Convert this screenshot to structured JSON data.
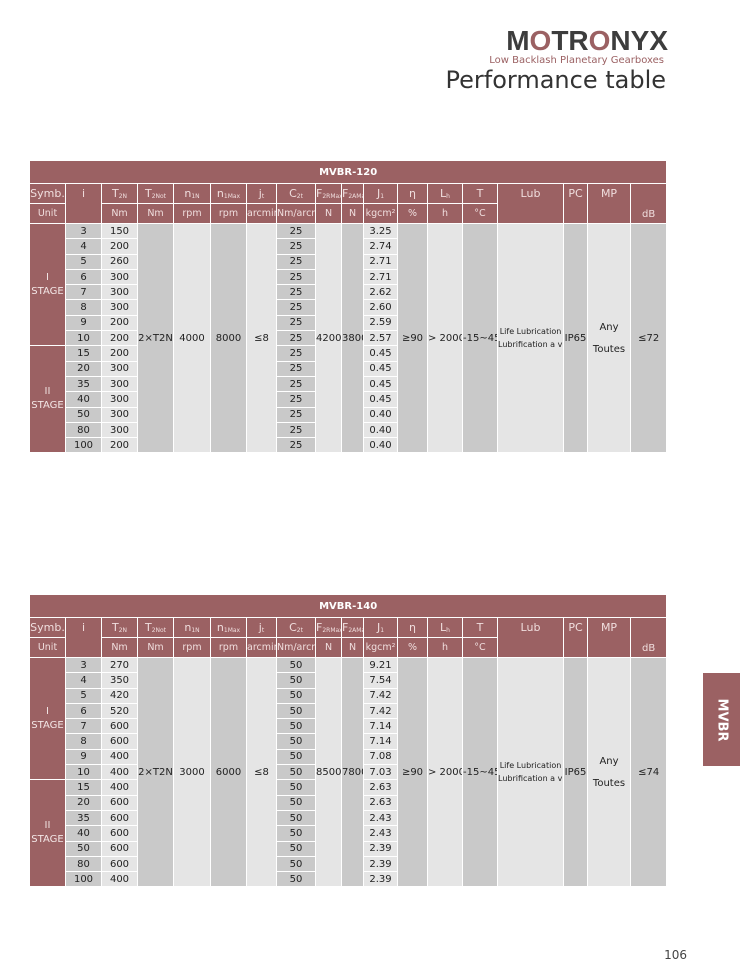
{
  "brand": {
    "name_parts": [
      "M",
      "O",
      "TR",
      "O",
      "NYX"
    ],
    "tagline": "Low Backlash Planetary Gearboxes"
  },
  "page_title": "Performance table",
  "side_tab": "MVBR",
  "page_number": "106",
  "colors": {
    "header": "#9b6163",
    "dark_col": "#c9c9c9",
    "light_col": "#e5e5e5"
  },
  "headers": [
    {
      "sym": "Symb.",
      "sub": "",
      "unit": "Unit"
    },
    {
      "sym": "i",
      "sub": "",
      "unit": ""
    },
    {
      "sym": "T",
      "sub": "2N",
      "unit": "Nm"
    },
    {
      "sym": "T",
      "sub": "2Not",
      "unit": "Nm"
    },
    {
      "sym": "n",
      "sub": "1N",
      "unit": "rpm"
    },
    {
      "sym": "n",
      "sub": "1Max",
      "unit": "rpm"
    },
    {
      "sym": "j",
      "sub": "t",
      "unit": "arcmin"
    },
    {
      "sym": "C",
      "sub": "2t",
      "unit": "Nm/arcmin"
    },
    {
      "sym": "F",
      "sub": "2RMax",
      "unit": "N"
    },
    {
      "sym": "F",
      "sub": "2AMax",
      "unit": "N"
    },
    {
      "sym": "J",
      "sub": "1",
      "unit": "kgcm²"
    },
    {
      "sym": "η",
      "sub": "",
      "unit": "%"
    },
    {
      "sym": "L",
      "sub": "h",
      "unit": "h"
    },
    {
      "sym": "T",
      "sub": "",
      "unit": "°C"
    },
    {
      "sym": "Lub",
      "sub": "",
      "unit": ""
    },
    {
      "sym": "PC",
      "sub": "",
      "unit": ""
    },
    {
      "sym": "MP",
      "sub": "",
      "unit": ""
    },
    {
      "sym": "",
      "sub": "",
      "unit": "dB"
    }
  ],
  "stages": [
    "I\nSTAGE",
    "II\nSTAGE"
  ],
  "tables": [
    {
      "model": "MVBR-120",
      "ratios": [
        "3",
        "4",
        "5",
        "6",
        "7",
        "8",
        "9",
        "10",
        "15",
        "20",
        "35",
        "40",
        "50",
        "80",
        "100"
      ],
      "t2n": [
        "150",
        "200",
        "260",
        "300",
        "300",
        "300",
        "200",
        "200",
        "200",
        "300",
        "300",
        "300",
        "300",
        "300",
        "200"
      ],
      "c2t": [
        "25",
        "25",
        "25",
        "25",
        "25",
        "25",
        "25",
        "25",
        "25",
        "25",
        "25",
        "25",
        "25",
        "25",
        "25"
      ],
      "j1": [
        "3.25",
        "2.74",
        "2.71",
        "2.71",
        "2.62",
        "2.60",
        "2.59",
        "2.57",
        "0.45",
        "0.45",
        "0.45",
        "0.45",
        "0.40",
        "0.40",
        "0.40"
      ],
      "t2not": "2×T2N",
      "n1n": "4000",
      "n1max": "8000",
      "jt": "≤8",
      "f2r": "4200",
      "f2a": "3800",
      "eta": "≥90",
      "lh": "> 20000",
      "temp": "-15~45",
      "lub": [
        "Life Lubrication",
        "Lubrification a vie"
      ],
      "pc": "IP65",
      "mp": [
        "Any",
        "Toutes"
      ],
      "db": "≤72"
    },
    {
      "model": "MVBR-140",
      "ratios": [
        "3",
        "4",
        "5",
        "6",
        "7",
        "8",
        "9",
        "10",
        "15",
        "20",
        "35",
        "40",
        "50",
        "80",
        "100"
      ],
      "t2n": [
        "270",
        "350",
        "420",
        "520",
        "600",
        "600",
        "400",
        "400",
        "400",
        "600",
        "600",
        "600",
        "600",
        "600",
        "400"
      ],
      "c2t": [
        "50",
        "50",
        "50",
        "50",
        "50",
        "50",
        "50",
        "50",
        "50",
        "50",
        "50",
        "50",
        "50",
        "50",
        "50"
      ],
      "j1": [
        "9.21",
        "7.54",
        "7.42",
        "7.42",
        "7.14",
        "7.14",
        "7.08",
        "7.03",
        "2.63",
        "2.63",
        "2.43",
        "2.43",
        "2.39",
        "2.39",
        "2.39"
      ],
      "t2not": "2×T2N",
      "n1n": "3000",
      "n1max": "6000",
      "jt": "≤8",
      "f2r": "8500",
      "f2a": "7800",
      "eta": "≥90",
      "lh": "> 20000",
      "temp": "-15~45",
      "lub": [
        "Life Lubrication",
        "Lubrification a vie"
      ],
      "pc": "IP65",
      "mp": [
        "Any",
        "Toutes"
      ],
      "db": "≤74"
    }
  ]
}
